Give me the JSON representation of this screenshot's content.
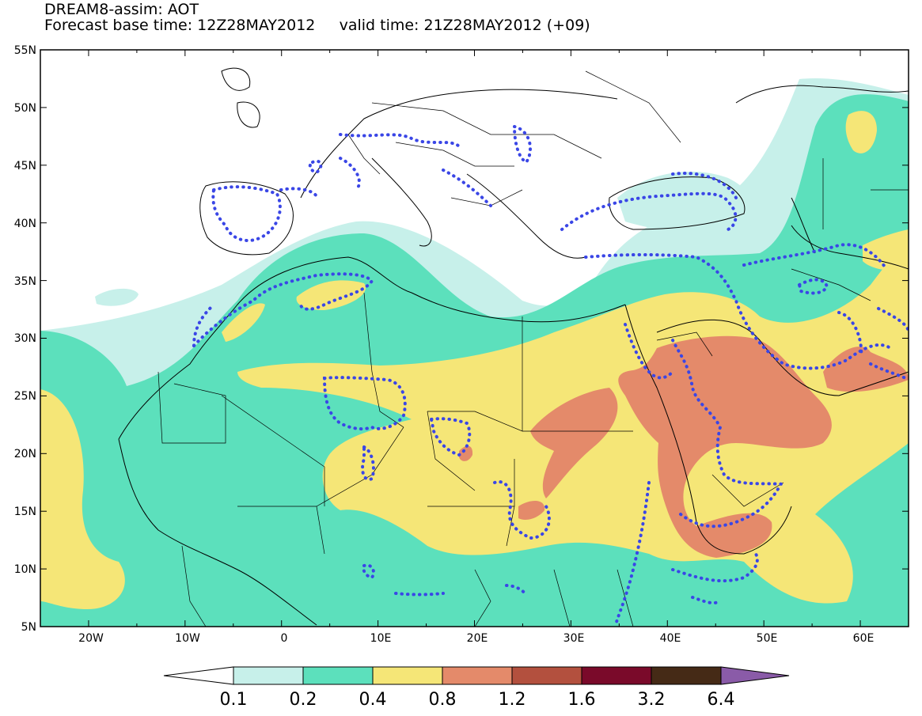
{
  "title": {
    "line1": "DREAM8-assim: AOT",
    "line2": "Forecast base time: 12Z28MAY2012     valid time: 21Z28MAY2012 (+09)"
  },
  "map": {
    "lat_range": [
      5,
      55
    ],
    "lon_range": [
      -25,
      65
    ],
    "lat_labels": [
      "55N",
      "50N",
      "45N",
      "40N",
      "35N",
      "30N",
      "25N",
      "20N",
      "15N",
      "10N",
      "5N"
    ],
    "lon_labels": [
      "20W",
      "10W",
      "0",
      "10E",
      "20E",
      "30E",
      "40E",
      "50E",
      "60E"
    ]
  },
  "colorbar": {
    "labels": [
      "0.1",
      "0.2",
      "0.4",
      "0.8",
      "1.2",
      "1.6",
      "3.2",
      "6.4"
    ],
    "colors": [
      "#ffffff",
      "#c7f0ea",
      "#5ce0bc",
      "#f5e677",
      "#e48a6a",
      "#b3503e",
      "#7a0a2a",
      "#452a16",
      "#8a5ba8"
    ]
  },
  "contour": {
    "color": "#3a46e6",
    "style": "dotted"
  }
}
